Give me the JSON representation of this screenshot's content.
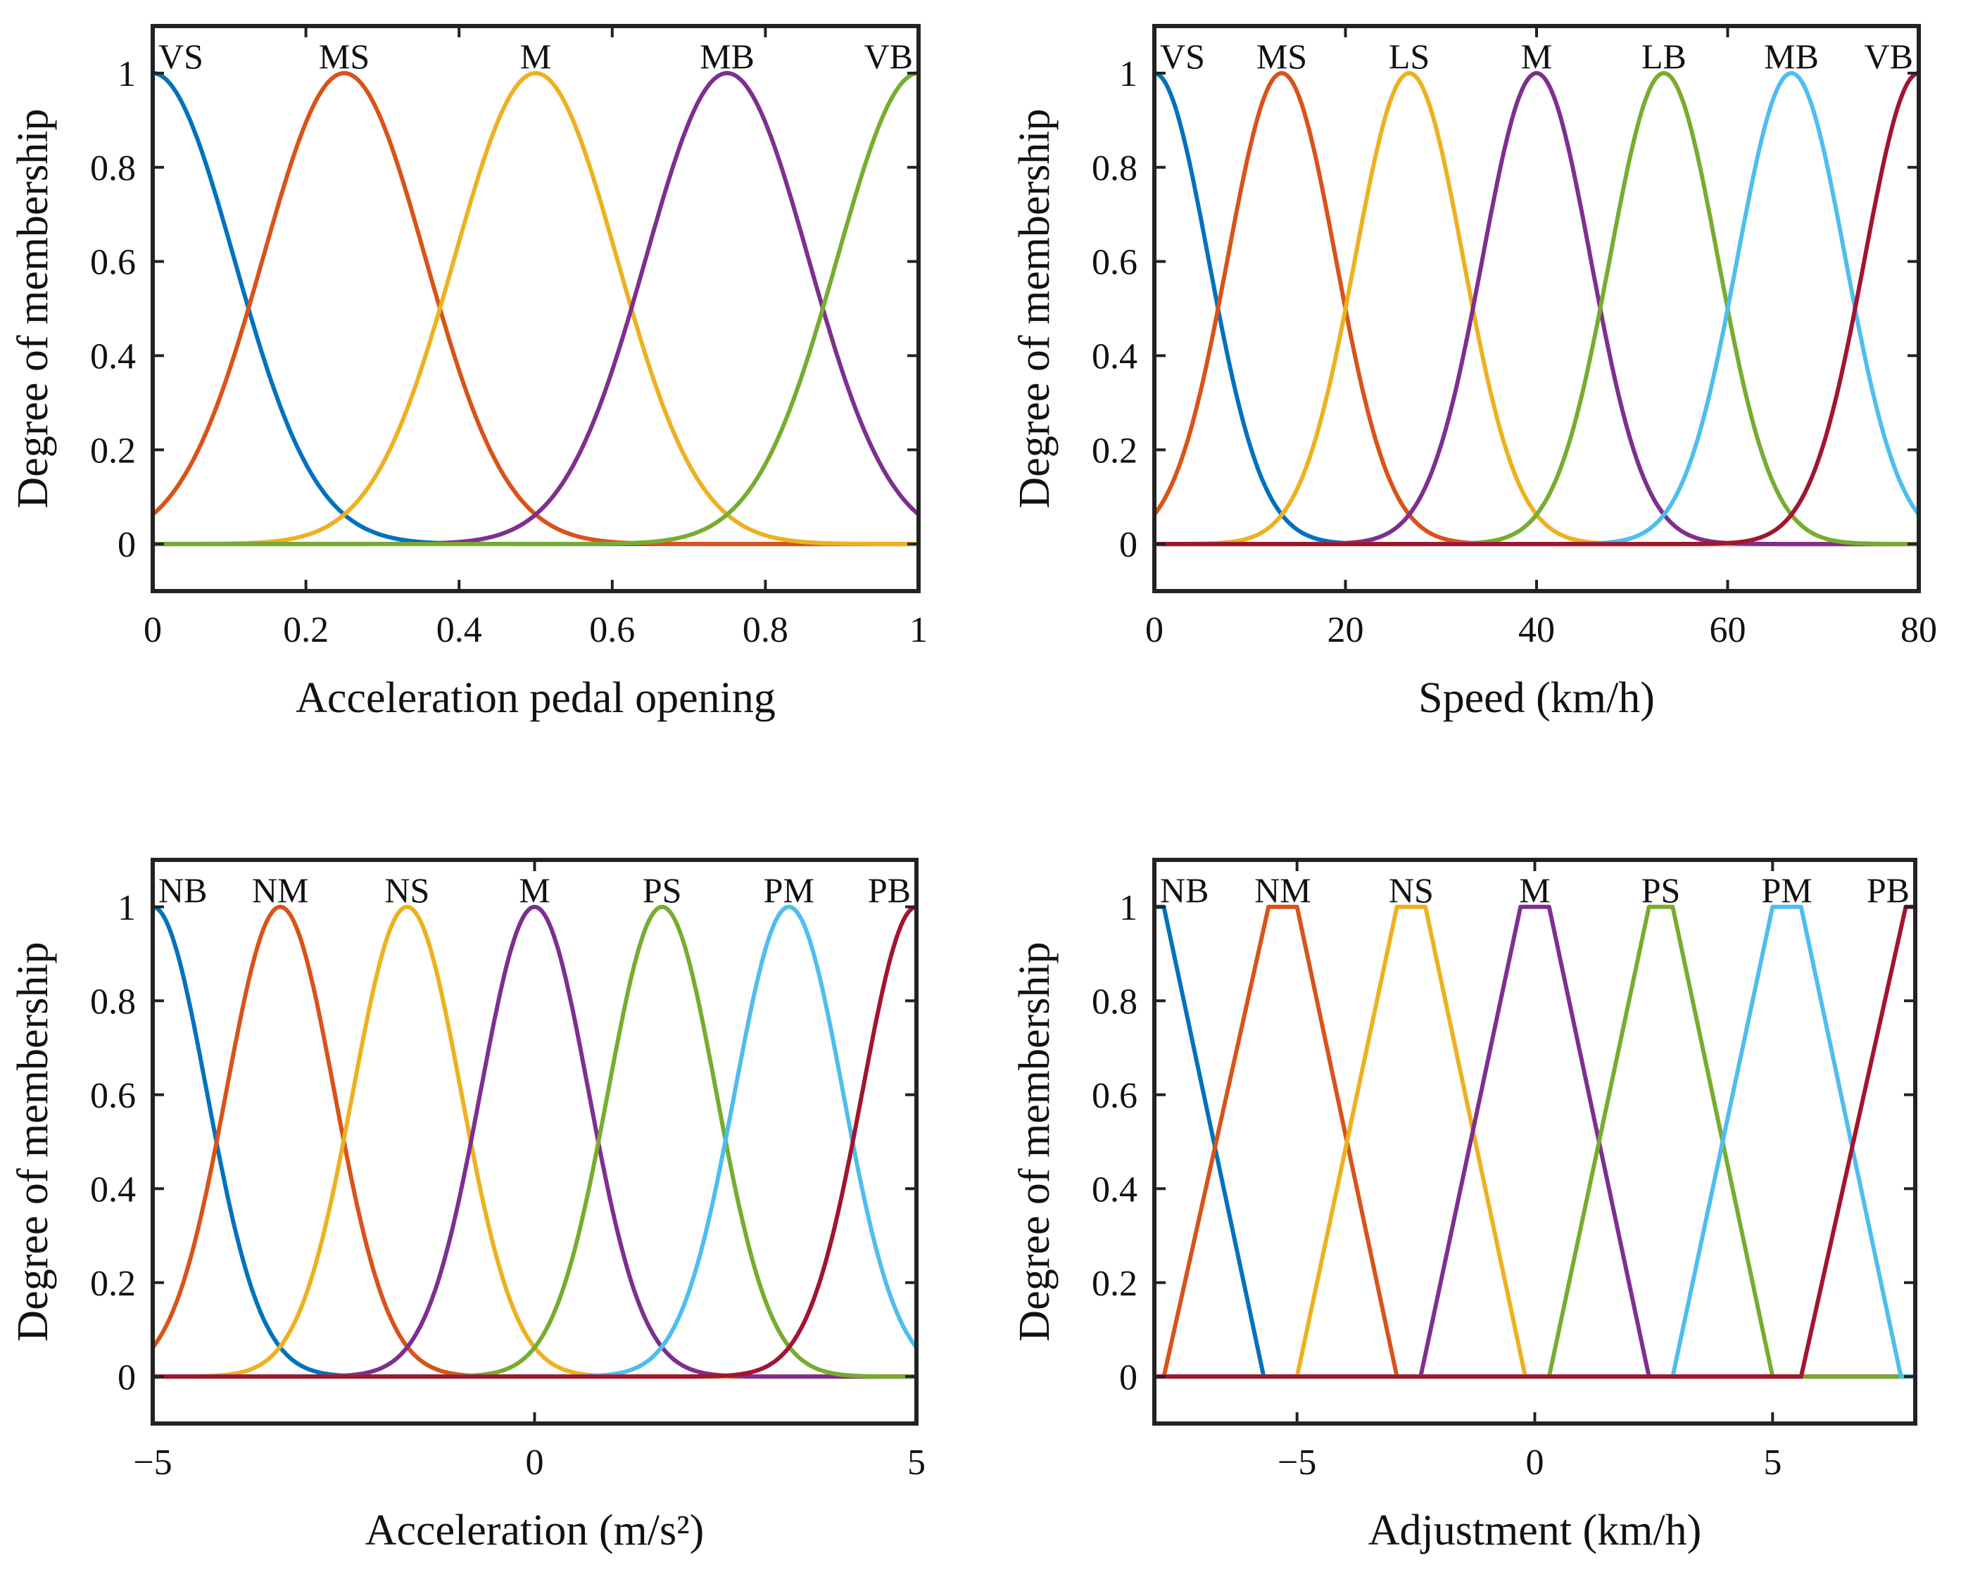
{
  "palette": {
    "blue": "#0072BD",
    "orange": "#D95319",
    "yellow": "#EDB120",
    "purple": "#7E2F8E",
    "green": "#77AC30",
    "cyan": "#4DBEEE",
    "crimson": "#A2142F"
  },
  "chart_data": [
    {
      "type": "line",
      "kind": "gaussian",
      "title": "",
      "xlabel": "Acceleration pedal opening",
      "ylabel": "Degree of membership",
      "xlim": [
        0,
        1
      ],
      "ylim": [
        -0.1,
        1.1
      ],
      "xticks": [
        0,
        0.2,
        0.4,
        0.6,
        0.8,
        1
      ],
      "xtick_labels": [
        "0",
        "0.2",
        "0.4",
        "0.6",
        "0.8",
        "1"
      ],
      "yticks": [
        0,
        0.2,
        0.4,
        0.6,
        0.8,
        1
      ],
      "ytick_labels": [
        "0",
        "0.2",
        "0.4",
        "0.6",
        "0.8",
        "1"
      ],
      "sigma": 0.1062,
      "series": [
        {
          "name": "VS",
          "center": 0,
          "color": "#0072BD"
        },
        {
          "name": "MS",
          "center": 0.25,
          "color": "#D95319"
        },
        {
          "name": "M",
          "center": 0.5,
          "color": "#EDB120"
        },
        {
          "name": "MB",
          "center": 0.75,
          "color": "#7E2F8E"
        },
        {
          "name": "VB",
          "center": 1,
          "color": "#77AC30"
        }
      ]
    },
    {
      "type": "line",
      "kind": "gaussian",
      "title": "",
      "xlabel": "Speed (km/h)",
      "ylabel": "Degree of membership",
      "xlim": [
        0,
        80
      ],
      "ylim": [
        -0.1,
        1.1
      ],
      "xticks": [
        0,
        20,
        40,
        60,
        80
      ],
      "xtick_labels": [
        "0",
        "20",
        "40",
        "60",
        "80"
      ],
      "yticks": [
        0,
        0.2,
        0.4,
        0.6,
        0.8,
        1
      ],
      "ytick_labels": [
        "0",
        "0.2",
        "0.4",
        "0.6",
        "0.8",
        "1"
      ],
      "sigma": 5.66,
      "series": [
        {
          "name": "VS",
          "center": 0,
          "color": "#0072BD"
        },
        {
          "name": "MS",
          "center": 13.33,
          "color": "#D95319"
        },
        {
          "name": "LS",
          "center": 26.67,
          "color": "#EDB120"
        },
        {
          "name": "M",
          "center": 40,
          "color": "#7E2F8E"
        },
        {
          "name": "LB",
          "center": 53.33,
          "color": "#77AC30"
        },
        {
          "name": "MB",
          "center": 66.67,
          "color": "#4DBEEE"
        },
        {
          "name": "VB",
          "center": 80,
          "color": "#A2142F"
        }
      ]
    },
    {
      "type": "line",
      "kind": "gaussian",
      "title": "",
      "xlabel": "Acceleration (m/s²)",
      "ylabel": "Degree of membership",
      "xlim": [
        -5,
        5
      ],
      "ylim": [
        -0.1,
        1.1
      ],
      "xticks": [
        -5,
        0,
        5
      ],
      "xtick_labels": [
        "−5",
        "0",
        "5"
      ],
      "yticks": [
        0,
        0.2,
        0.4,
        0.6,
        0.8,
        1
      ],
      "ytick_labels": [
        "0",
        "0.2",
        "0.4",
        "0.6",
        "0.8",
        "1"
      ],
      "sigma": 0.708,
      "series": [
        {
          "name": "NB",
          "center": -5,
          "color": "#0072BD"
        },
        {
          "name": "NM",
          "center": -3.33,
          "color": "#D95319"
        },
        {
          "name": "NS",
          "center": -1.67,
          "color": "#EDB120"
        },
        {
          "name": "M",
          "center": 0,
          "color": "#7E2F8E"
        },
        {
          "name": "PS",
          "center": 1.67,
          "color": "#77AC30"
        },
        {
          "name": "PM",
          "center": 3.33,
          "color": "#4DBEEE"
        },
        {
          "name": "PB",
          "center": 5,
          "color": "#A2142F"
        }
      ]
    },
    {
      "type": "line",
      "kind": "trapezoid",
      "title": "",
      "xlabel": "Adjustment (km/h)",
      "ylabel": "Degree of membership",
      "xlim": [
        -8,
        8
      ],
      "ylim": [
        -0.1,
        1.1
      ],
      "xticks": [
        -5,
        0,
        5
      ],
      "xtick_labels": [
        "−5",
        "0",
        "5"
      ],
      "yticks": [
        0,
        0.2,
        0.4,
        0.6,
        0.8,
        1
      ],
      "ytick_labels": [
        "0",
        "0.2",
        "0.4",
        "0.6",
        "0.8",
        "1"
      ],
      "series": [
        {
          "name": "NB",
          "points": [
            [
              -8,
              1
            ],
            [
              -7.8,
              1
            ],
            [
              -5.7,
              0
            ],
            [
              8,
              0
            ]
          ],
          "color": "#0072BD"
        },
        {
          "name": "NM",
          "points": [
            [
              -8,
              0
            ],
            [
              -7.8,
              0
            ],
            [
              -5.6,
              1
            ],
            [
              -5.0,
              1
            ],
            [
              -2.9,
              0
            ],
            [
              8,
              0
            ]
          ],
          "color": "#D95319"
        },
        {
          "name": "NS",
          "points": [
            [
              -8,
              0
            ],
            [
              -5.0,
              0
            ],
            [
              -2.9,
              1
            ],
            [
              -2.3,
              1
            ],
            [
              -0.2,
              0
            ],
            [
              8,
              0
            ]
          ],
          "color": "#EDB120"
        },
        {
          "name": "M",
          "points": [
            [
              -8,
              0
            ],
            [
              -2.4,
              0
            ],
            [
              -0.3,
              1
            ],
            [
              0.3,
              1
            ],
            [
              2.4,
              0
            ],
            [
              8,
              0
            ]
          ],
          "color": "#7E2F8E"
        },
        {
          "name": "PS",
          "points": [
            [
              -8,
              0
            ],
            [
              0.3,
              0
            ],
            [
              2.4,
              1
            ],
            [
              2.9,
              1
            ],
            [
              5.0,
              0
            ],
            [
              8,
              0
            ]
          ],
          "color": "#77AC30"
        },
        {
          "name": "PM",
          "points": [
            [
              -8,
              0
            ],
            [
              2.9,
              0
            ],
            [
              5.0,
              1
            ],
            [
              5.6,
              1
            ],
            [
              7.7,
              0
            ],
            [
              8,
              0
            ]
          ],
          "color": "#4DBEEE"
        },
        {
          "name": "PB",
          "points": [
            [
              -8,
              0
            ],
            [
              5.6,
              0
            ],
            [
              7.8,
              1
            ],
            [
              8,
              1
            ]
          ],
          "color": "#A2142F"
        }
      ]
    }
  ]
}
